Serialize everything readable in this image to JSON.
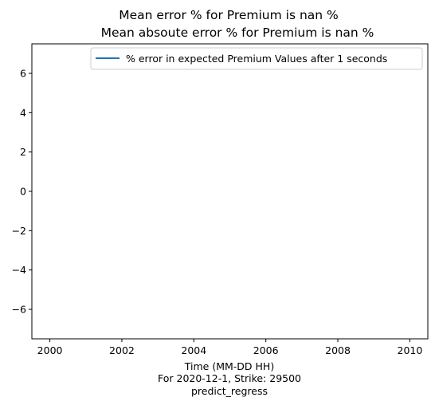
{
  "chart_data": {
    "type": "line",
    "title_lines": [
      "Mean error % for Premium is nan %",
      "Mean absoute error % for Premium is nan %"
    ],
    "xlabel_lines": [
      "Time (MM-DD HH)",
      "For 2020-12-1, Strike: 29500",
      "predict_regress"
    ],
    "ylabel": "",
    "xlim": [
      1999.5,
      2010.5
    ],
    "ylim": [
      -7.5,
      7.5
    ],
    "xticks": [
      2000,
      2002,
      2004,
      2006,
      2008,
      2010
    ],
    "yticks": [
      6,
      4,
      2,
      0,
      -2,
      -4,
      -6
    ],
    "ytick_labels": [
      "6",
      "4",
      "2",
      "0",
      "−2",
      "−4",
      "−6"
    ],
    "grid": false,
    "legend_position": "top-right",
    "series": [
      {
        "name": "% error in expected Premium Values after 1 seconds",
        "color": "#1f77b4",
        "x": [],
        "y": []
      }
    ]
  }
}
